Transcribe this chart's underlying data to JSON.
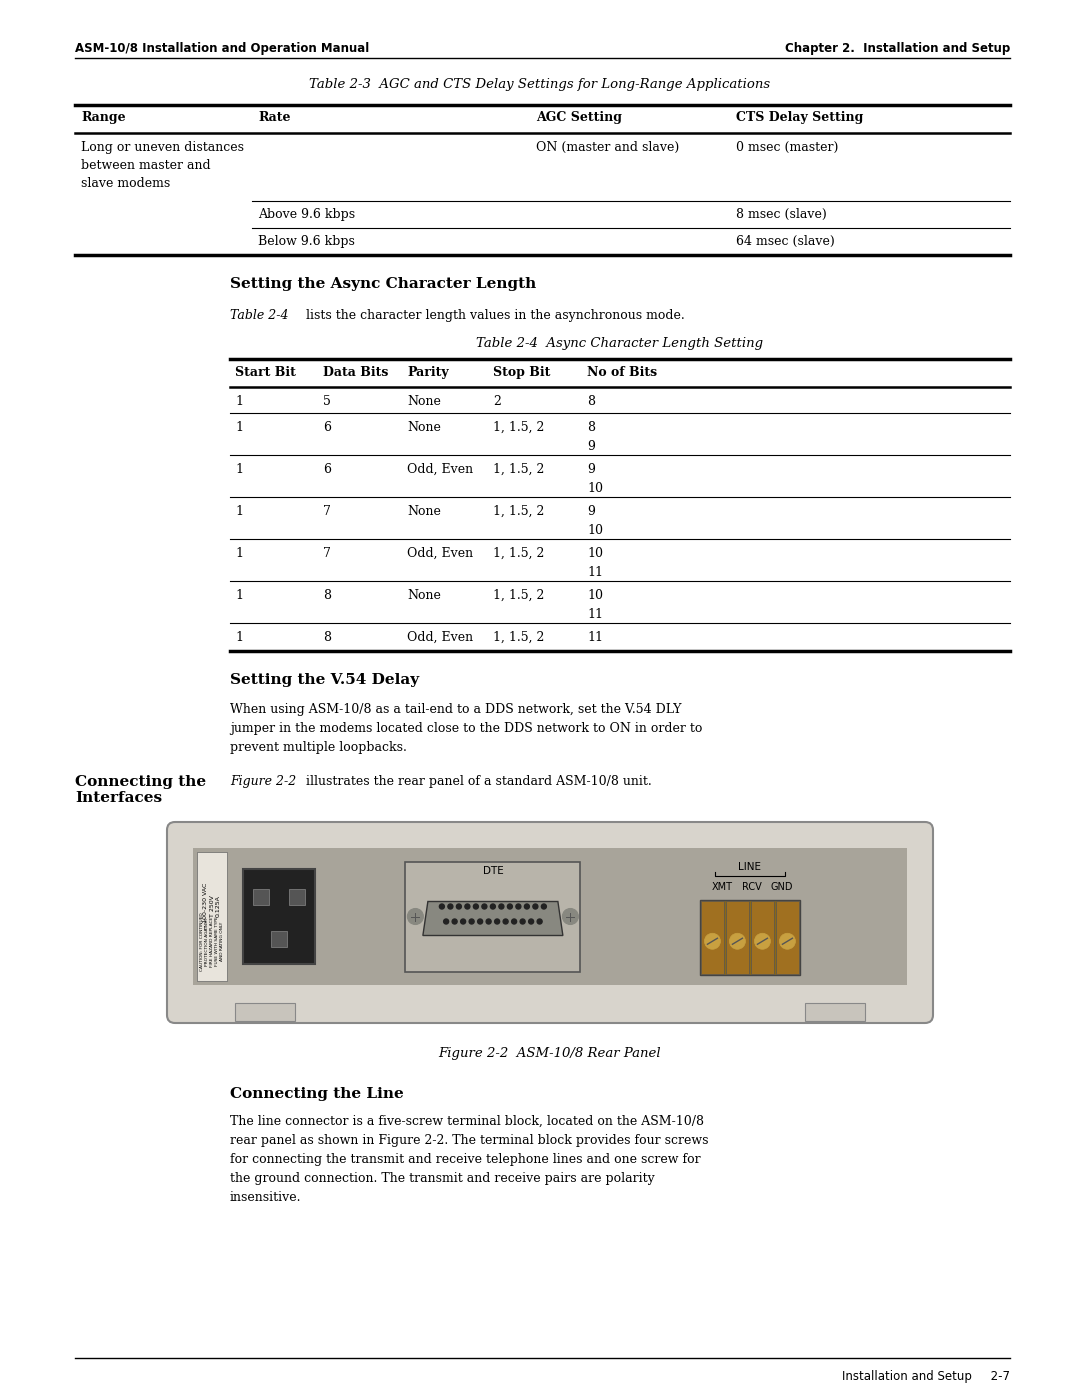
{
  "page_width": 10.8,
  "page_height": 13.97,
  "bg_color": "#ffffff",
  "header_left": "ASM-10/8 Installation and Operation Manual",
  "header_right": "Chapter 2.  Installation and Setup",
  "footer_right": "Installation and Setup     2-7",
  "table1_title": "Table 2-3  AGC and CTS Delay Settings for Long-Range Applications",
  "table1_headers": [
    "Range",
    "Rate",
    "AGC Setting",
    "CTS Delay Setting"
  ],
  "section1_heading": "Setting the Async Character Length",
  "table2_title": "Table 2-4  Async Character Length Setting",
  "table2_headers": [
    "Start Bit",
    "Data Bits",
    "Parity",
    "Stop Bit",
    "No of Bits"
  ],
  "table2_rows": [
    [
      "1",
      "5",
      "None",
      "2",
      "8"
    ],
    [
      "1",
      "6",
      "None",
      "1, 1.5, 2",
      "8\n9"
    ],
    [
      "1",
      "6",
      "Odd, Even",
      "1, 1.5, 2",
      "9\n10"
    ],
    [
      "1",
      "7",
      "None",
      "1, 1.5, 2",
      "9\n10"
    ],
    [
      "1",
      "7",
      "Odd, Even",
      "1, 1.5, 2",
      "10\n11"
    ],
    [
      "1",
      "8",
      "None",
      "1, 1.5, 2",
      "10\n11"
    ],
    [
      "1",
      "8",
      "Odd, Even",
      "1, 1.5, 2",
      "11"
    ]
  ],
  "section2_heading": "Setting the V.54 Delay",
  "section2_text": "When using ASM-10/8 as a tail-end to a DDS network, set the V.54 DLY\njumper in the modems located close to the DDS network to ON in order to\nprevent multiple loopbacks.",
  "sidebar_heading": "Connecting the\nInterfaces",
  "figure_intro_italic": "Figure 2-2",
  "figure_intro_rest": " illustrates the rear panel of a standard ASM-10/8 unit.",
  "figure_caption": "Figure 2-2  ASM-10/8 Rear Panel",
  "connecting_line_heading": "Connecting the Line",
  "connecting_line_text": "The line connector is a five-screw terminal block, located on the ASM-10/8\nrear panel as shown in Figure 2-2. The terminal block provides four screws\nfor connecting the transmit and receive telephone lines and one screw for\nthe ground connection. The transmit and receive pairs are polarity\ninsensitive."
}
